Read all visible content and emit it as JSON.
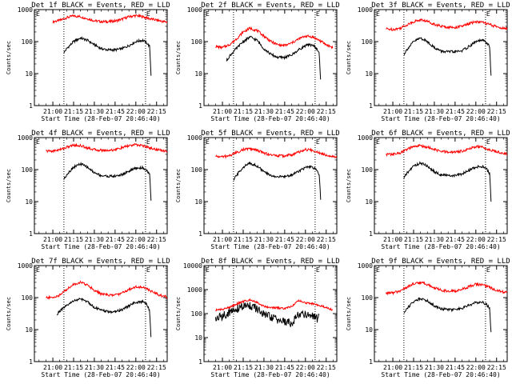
{
  "chart_data": [
    {
      "type": "line",
      "title": "Det 1f BLACK = Events, RED = LLD",
      "xlabel": "Start Time (28-Feb-07 20:46:40)",
      "ylabel": "Counts/sec",
      "yscale": "log",
      "ylim": [
        1,
        1000
      ],
      "yticks": [
        "1",
        "10",
        "100",
        "1000"
      ],
      "xticks": [
        "21:00",
        "21:15",
        "21:30",
        "21:45",
        "22:00",
        "22:15"
      ],
      "markers": [
        "E",
        "E"
      ],
      "series": [
        {
          "color": "#ff0000",
          "x": [
            "21:00",
            "21:05",
            "21:10",
            "21:15",
            "21:20",
            "21:25",
            "21:30",
            "21:35",
            "21:40",
            "21:45",
            "21:50",
            "21:55",
            "22:00",
            "22:05",
            "22:10",
            "22:15",
            "22:20",
            "22:25"
          ],
          "values": [
            420,
            460,
            560,
            640,
            600,
            520,
            450,
            420,
            420,
            440,
            500,
            600,
            650,
            600,
            520,
            470,
            420,
            400
          ]
        },
        {
          "color": "#000000",
          "x": [
            "21:08",
            "21:10",
            "21:15",
            "21:20",
            "21:25",
            "21:30",
            "21:35",
            "21:40",
            "21:45",
            "21:50",
            "21:55",
            "22:00",
            "22:05",
            "22:08",
            "22:10",
            "22:11"
          ],
          "values": [
            45,
            60,
            100,
            130,
            110,
            80,
            60,
            55,
            55,
            60,
            75,
            100,
            110,
            90,
            70,
            9
          ]
        }
      ]
    },
    {
      "type": "line",
      "title": "Det 2f BLACK = Events, RED = LLD",
      "xlabel": "Start Time (28-Feb-07 20:46:40)",
      "ylabel": "Counts/sec",
      "yscale": "log",
      "ylim": [
        1,
        1000
      ],
      "yticks": [
        "1",
        "10",
        "100",
        "1000"
      ],
      "xticks": [
        "21:00",
        "21:15",
        "21:30",
        "21:45",
        "22:00",
        "22:15"
      ],
      "markers": [
        "E",
        "E"
      ],
      "series": [
        {
          "color": "#ff0000",
          "x": [
            "20:55",
            "21:00",
            "21:05",
            "21:10",
            "21:15",
            "21:20",
            "21:25",
            "21:30",
            "21:35",
            "21:40",
            "21:45",
            "21:50",
            "21:55",
            "22:00",
            "22:05",
            "22:10",
            "22:15",
            "22:20"
          ],
          "values": [
            70,
            65,
            80,
            120,
            200,
            260,
            220,
            150,
            100,
            80,
            75,
            90,
            120,
            150,
            140,
            110,
            80,
            65
          ]
        },
        {
          "color": "#000000",
          "x": [
            "21:03",
            "21:05",
            "21:10",
            "21:15",
            "21:20",
            "21:25",
            "21:30",
            "21:35",
            "21:40",
            "21:45",
            "21:50",
            "21:55",
            "22:00",
            "22:05",
            "22:08",
            "22:10",
            "22:11"
          ],
          "values": [
            25,
            35,
            60,
            100,
            140,
            110,
            60,
            40,
            32,
            32,
            38,
            55,
            75,
            80,
            60,
            45,
            5
          ]
        }
      ]
    },
    {
      "type": "line",
      "title": "Det 3f BLACK = Events, RED = LLD",
      "xlabel": "Start Time (28-Feb-07 20:46:40)",
      "ylabel": "Counts/sec",
      "yscale": "log",
      "ylim": [
        1,
        1000
      ],
      "yticks": [
        "1",
        "10",
        "100",
        "1000"
      ],
      "xticks": [
        "21:00",
        "21:15",
        "21:30",
        "21:45",
        "22:00",
        "22:15"
      ],
      "markers": [
        "E",
        "E"
      ],
      "series": [
        {
          "color": "#ff0000",
          "x": [
            "20:55",
            "21:00",
            "21:05",
            "21:10",
            "21:15",
            "21:20",
            "21:25",
            "21:30",
            "21:35",
            "21:40",
            "21:45",
            "21:50",
            "21:55",
            "22:00",
            "22:05",
            "22:10",
            "22:15",
            "22:20",
            "22:25"
          ],
          "values": [
            250,
            240,
            260,
            330,
            420,
            480,
            430,
            350,
            300,
            280,
            280,
            300,
            360,
            420,
            400,
            340,
            290,
            260,
            240
          ]
        },
        {
          "color": "#000000",
          "x": [
            "21:08",
            "21:10",
            "21:15",
            "21:20",
            "21:25",
            "21:30",
            "21:35",
            "21:40",
            "21:45",
            "21:50",
            "21:55",
            "22:00",
            "22:05",
            "22:08",
            "22:10",
            "22:11"
          ],
          "values": [
            40,
            55,
            100,
            130,
            100,
            65,
            50,
            48,
            48,
            52,
            70,
            100,
            110,
            90,
            70,
            8
          ]
        }
      ]
    },
    {
      "type": "line",
      "title": "Det 4f BLACK = Events, RED = LLD",
      "xlabel": "Start Time (28-Feb-07 20:46:40)",
      "ylabel": "Counts/sec",
      "yscale": "log",
      "ylim": [
        1,
        1000
      ],
      "yticks": [
        "1",
        "10",
        "100",
        "1000"
      ],
      "xticks": [
        "21:00",
        "21:15",
        "21:30",
        "21:45",
        "22:00",
        "22:15"
      ],
      "markers": [
        "E",
        "E"
      ],
      "series": [
        {
          "color": "#ff0000",
          "x": [
            "20:55",
            "21:00",
            "21:05",
            "21:10",
            "21:15",
            "21:20",
            "21:25",
            "21:30",
            "21:35",
            "21:40",
            "21:45",
            "21:50",
            "21:55",
            "22:00",
            "22:05",
            "22:10",
            "22:15",
            "22:20",
            "22:25"
          ],
          "values": [
            380,
            380,
            420,
            500,
            580,
            560,
            480,
            420,
            400,
            400,
            420,
            480,
            560,
            600,
            560,
            480,
            420,
            390,
            380
          ]
        },
        {
          "color": "#000000",
          "x": [
            "21:08",
            "21:10",
            "21:15",
            "21:20",
            "21:25",
            "21:30",
            "21:35",
            "21:40",
            "21:45",
            "21:50",
            "21:55",
            "22:00",
            "22:05",
            "22:08",
            "22:10",
            "22:11"
          ],
          "values": [
            50,
            70,
            120,
            150,
            120,
            80,
            65,
            62,
            62,
            70,
            90,
            110,
            115,
            95,
            70,
            10
          ]
        }
      ]
    },
    {
      "type": "line",
      "title": "Det 5f BLACK = Events, RED = LLD",
      "xlabel": "Start Time (28-Feb-07 20:46:40)",
      "ylabel": "Counts/sec",
      "yscale": "log",
      "ylim": [
        1,
        1000
      ],
      "yticks": [
        "1",
        "10",
        "100",
        "1000"
      ],
      "xticks": [
        "21:00",
        "21:15",
        "21:30",
        "21:45",
        "22:00",
        "22:15"
      ],
      "markers": [
        "E",
        "E"
      ],
      "series": [
        {
          "color": "#ff0000",
          "x": [
            "20:55",
            "21:00",
            "21:05",
            "21:10",
            "21:15",
            "21:20",
            "21:25",
            "21:30",
            "21:35",
            "21:40",
            "21:45",
            "21:50",
            "21:55",
            "22:00",
            "22:05",
            "22:10",
            "22:15",
            "22:20",
            "22:25"
          ],
          "values": [
            260,
            250,
            270,
            340,
            420,
            450,
            400,
            330,
            290,
            270,
            270,
            290,
            350,
            420,
            400,
            340,
            290,
            260,
            240
          ]
        },
        {
          "color": "#000000",
          "x": [
            "21:08",
            "21:10",
            "21:15",
            "21:20",
            "21:25",
            "21:30",
            "21:35",
            "21:40",
            "21:45",
            "21:50",
            "21:55",
            "22:00",
            "22:05",
            "22:08",
            "22:10",
            "22:11"
          ],
          "values": [
            45,
            65,
            120,
            160,
            130,
            85,
            65,
            60,
            60,
            68,
            90,
            115,
            120,
            95,
            70,
            12
          ]
        }
      ]
    },
    {
      "type": "line",
      "title": "Det 6f BLACK = Events, RED = LLD",
      "xlabel": "Start Time (28-Feb-07 20:46:40)",
      "ylabel": "Counts/sec",
      "yscale": "log",
      "ylim": [
        1,
        1000
      ],
      "yticks": [
        "1",
        "10",
        "100",
        "1000"
      ],
      "xticks": [
        "21:00",
        "21:15",
        "21:30",
        "21:45",
        "22:00",
        "22:15"
      ],
      "markers": [
        "E",
        "E"
      ],
      "series": [
        {
          "color": "#ff0000",
          "x": [
            "20:55",
            "21:00",
            "21:05",
            "21:10",
            "21:15",
            "21:20",
            "21:25",
            "21:30",
            "21:35",
            "21:40",
            "21:45",
            "21:50",
            "21:55",
            "22:00",
            "22:05",
            "22:10",
            "22:15",
            "22:20",
            "22:25"
          ],
          "values": [
            300,
            300,
            330,
            420,
            520,
            560,
            500,
            420,
            370,
            350,
            350,
            380,
            450,
            520,
            500,
            420,
            360,
            320,
            300
          ]
        },
        {
          "color": "#000000",
          "x": [
            "21:08",
            "21:10",
            "21:15",
            "21:20",
            "21:25",
            "21:30",
            "21:35",
            "21:40",
            "21:45",
            "21:50",
            "21:55",
            "22:00",
            "22:05",
            "22:08",
            "22:10",
            "22:11"
          ],
          "values": [
            55,
            75,
            130,
            160,
            130,
            85,
            68,
            65,
            65,
            72,
            95,
            120,
            125,
            100,
            75,
            10
          ]
        }
      ]
    },
    {
      "type": "line",
      "title": "Det 7f BLACK = Events, RED = LLD",
      "xlabel": "Start Time (28-Feb-07 20:46:40)",
      "ylabel": "Counts/sec",
      "yscale": "log",
      "ylim": [
        1,
        1000
      ],
      "yticks": [
        "1",
        "10",
        "100",
        "1000"
      ],
      "xticks": [
        "21:00",
        "21:15",
        "21:30",
        "21:45",
        "22:00",
        "22:15"
      ],
      "markers": [
        "E",
        "E"
      ],
      "series": [
        {
          "color": "#ff0000",
          "x": [
            "20:55",
            "21:00",
            "21:05",
            "21:10",
            "21:15",
            "21:20",
            "21:25",
            "21:30",
            "21:35",
            "21:40",
            "21:45",
            "21:50",
            "21:55",
            "22:00",
            "22:05",
            "22:10",
            "22:15",
            "22:20",
            "22:25"
          ],
          "values": [
            100,
            100,
            120,
            180,
            260,
            300,
            250,
            170,
            130,
            120,
            120,
            140,
            180,
            220,
            210,
            170,
            130,
            110,
            100
          ]
        },
        {
          "color": "#000000",
          "x": [
            "21:03",
            "21:05",
            "21:10",
            "21:15",
            "21:20",
            "21:25",
            "21:30",
            "21:35",
            "21:40",
            "21:45",
            "21:50",
            "21:55",
            "22:00",
            "22:05",
            "22:08",
            "22:10",
            "22:11"
          ],
          "values": [
            30,
            38,
            55,
            80,
            90,
            75,
            50,
            40,
            36,
            36,
            42,
            55,
            72,
            75,
            60,
            40,
            5
          ]
        }
      ]
    },
    {
      "type": "line",
      "title": "Det 8f BLACK = Events, RED = LLD",
      "xlabel": "Start Time (28-Feb-07 20:46:40)",
      "ylabel": "Counts/sec",
      "yscale": "log",
      "ylim": [
        1,
        10000
      ],
      "yticks": [
        "1",
        "10",
        "100",
        "1000",
        "10000"
      ],
      "xticks": [
        "21:00",
        "21:15",
        "21:30",
        "21:45",
        "22:00",
        "22:15"
      ],
      "markers": [
        "E",
        "E"
      ],
      "series": [
        {
          "color": "#ff0000",
          "x": [
            "20:55",
            "21:00",
            "21:05",
            "21:10",
            "21:15",
            "21:20",
            "21:25",
            "21:30",
            "21:35",
            "21:40",
            "21:45",
            "21:50",
            "21:55",
            "22:00",
            "22:05",
            "22:10",
            "22:15",
            "22:20"
          ],
          "values": [
            140,
            150,
            180,
            250,
            320,
            380,
            300,
            200,
            180,
            170,
            160,
            200,
            350,
            280,
            260,
            220,
            180,
            140
          ]
        },
        {
          "color": "#000000",
          "x": [
            "20:55",
            "21:00",
            "21:05",
            "21:10",
            "21:15",
            "21:20",
            "21:25",
            "21:30",
            "21:35",
            "21:40",
            "21:45",
            "21:50",
            "21:55",
            "22:00",
            "22:05",
            "22:08",
            "22:10"
          ],
          "values": [
            60,
            80,
            110,
            150,
            200,
            220,
            150,
            90,
            70,
            55,
            45,
            40,
            90,
            100,
            80,
            60,
            70
          ]
        }
      ]
    },
    {
      "type": "line",
      "title": "Det 9f BLACK = Events, RED = LLD",
      "xlabel": "Start Time (28-Feb-07 20:46:40)",
      "ylabel": "Counts/sec",
      "yscale": "log",
      "ylim": [
        1,
        1000
      ],
      "yticks": [
        "1",
        "10",
        "100",
        "1000"
      ],
      "xticks": [
        "21:00",
        "21:15",
        "21:30",
        "21:45",
        "22:00",
        "22:15"
      ],
      "markers": [
        "E",
        "E"
      ],
      "series": [
        {
          "color": "#ff0000",
          "x": [
            "20:55",
            "21:00",
            "21:05",
            "21:10",
            "21:15",
            "21:20",
            "21:25",
            "21:30",
            "21:35",
            "21:40",
            "21:45",
            "21:50",
            "21:55",
            "22:00",
            "22:05",
            "22:10",
            "22:15",
            "22:20",
            "22:25"
          ],
          "values": [
            140,
            140,
            160,
            210,
            270,
            300,
            260,
            200,
            170,
            160,
            160,
            180,
            220,
            260,
            250,
            210,
            170,
            150,
            140
          ]
        },
        {
          "color": "#000000",
          "x": [
            "21:08",
            "21:10",
            "21:15",
            "21:20",
            "21:25",
            "21:30",
            "21:35",
            "21:40",
            "21:45",
            "21:50",
            "21:55",
            "22:00",
            "22:05",
            "22:08",
            "22:10",
            "22:11"
          ],
          "values": [
            32,
            45,
            75,
            95,
            80,
            55,
            45,
            42,
            42,
            46,
            58,
            70,
            72,
            60,
            45,
            8
          ]
        }
      ]
    }
  ]
}
